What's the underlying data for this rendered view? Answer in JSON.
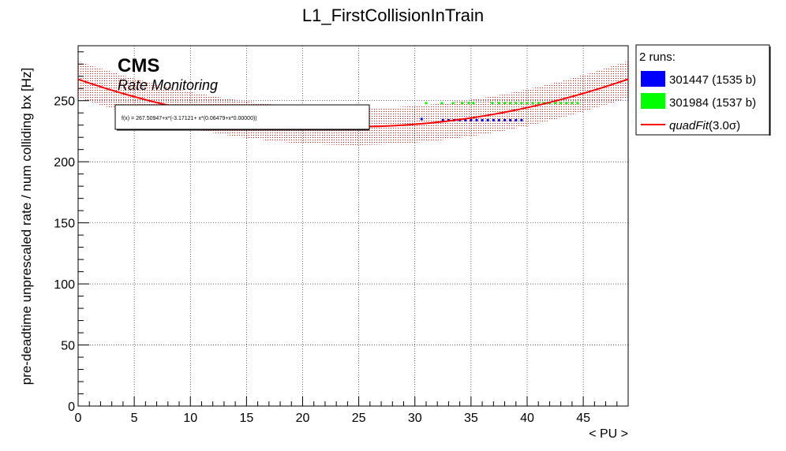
{
  "chart_data": {
    "type": "scatter",
    "title": "L1_FirstCollisionInTrain",
    "xlabel": "< PU >",
    "ylabel": "pre-deadtime unprescaled rate / num colliding bx [Hz]",
    "xlim": [
      0,
      49
    ],
    "ylim": [
      0,
      295
    ],
    "x_ticks": [
      0,
      5,
      10,
      15,
      20,
      25,
      30,
      35,
      40,
      45
    ],
    "y_ticks": [
      0,
      50,
      100,
      150,
      200,
      250
    ],
    "grid": true,
    "cms_label": "CMS",
    "cms_sublabel": "Rate Monitoring",
    "fit_formula": "f(x) = 267.50947+x*(-3.17121+ x*(0.06479+x*0.00000))",
    "legend": {
      "title": "2 runs:",
      "placement": "outside-right",
      "entries": [
        {
          "label": "301447 (1535 b)",
          "color": "#0000ff",
          "kind": "box"
        },
        {
          "label": "301984 (1537 b)",
          "color": "#00ff00",
          "kind": "box"
        },
        {
          "label_italic": "quadFit",
          "label_suffix": "(3.0σ)",
          "color": "#ff0000",
          "kind": "line"
        }
      ]
    },
    "fit": {
      "name": "quadFit",
      "coefficients": [
        267.50947,
        -3.17121,
        0.06479
      ],
      "sigma_band": 15,
      "band_color": "#ff0000",
      "line_color": "#ff0000"
    },
    "series": [
      {
        "name": "301447 (1535 b)",
        "color": "#0000ff",
        "points": [
          [
            30.6,
            235
          ],
          [
            32.5,
            234
          ],
          [
            33.0,
            234
          ],
          [
            33.5,
            234
          ],
          [
            34.0,
            234
          ],
          [
            34.5,
            234
          ],
          [
            35.0,
            234
          ],
          [
            35.5,
            234
          ],
          [
            36.0,
            234
          ],
          [
            36.5,
            234
          ],
          [
            37.0,
            234
          ],
          [
            37.5,
            234
          ],
          [
            38.0,
            234
          ],
          [
            38.5,
            234
          ],
          [
            39.0,
            234
          ],
          [
            39.5,
            234
          ]
        ]
      },
      {
        "name": "301984 (1537 b)",
        "color": "#00ff00",
        "points": [
          [
            31.0,
            248
          ],
          [
            32.4,
            248
          ],
          [
            33.4,
            248
          ],
          [
            34.2,
            248
          ],
          [
            34.8,
            248
          ],
          [
            35.2,
            248
          ],
          [
            36.9,
            248
          ],
          [
            37.5,
            248
          ],
          [
            38.0,
            248
          ],
          [
            38.5,
            248
          ],
          [
            39.0,
            248
          ],
          [
            39.5,
            248
          ],
          [
            40.0,
            248
          ],
          [
            40.5,
            248
          ],
          [
            41.0,
            248
          ],
          [
            41.5,
            248
          ],
          [
            42.0,
            248
          ],
          [
            42.5,
            248
          ],
          [
            43.0,
            248
          ],
          [
            43.5,
            248
          ],
          [
            44.0,
            248
          ],
          [
            44.5,
            248
          ]
        ]
      }
    ]
  }
}
